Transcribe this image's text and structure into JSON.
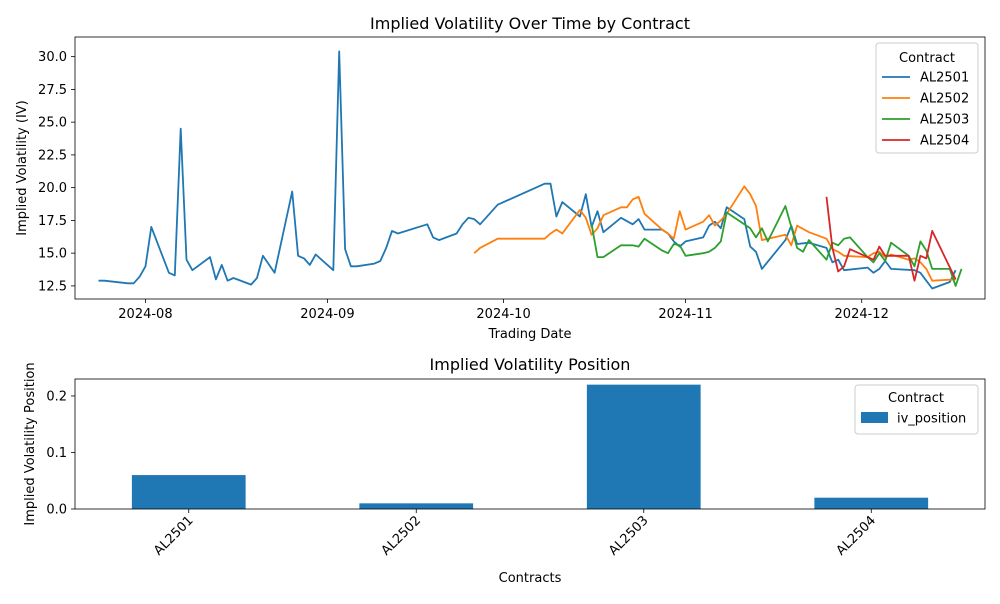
{
  "colors": {
    "AL2501": "#1f77b4",
    "AL2502": "#ff7f0e",
    "AL2503": "#2ca02c",
    "AL2504": "#d62728",
    "bar": "#1f77b4"
  },
  "chart_data": [
    {
      "type": "line",
      "title": "Implied Volatility Over Time by Contract",
      "xlabel": "Trading Date",
      "ylabel": "Implied Volatility (IV)",
      "xlim": [
        "2024-07-20",
        "2024-12-22"
      ],
      "ylim": [
        11.5,
        31.5
      ],
      "x_ticks": [
        "2024-08-01",
        "2024-09-01",
        "2024-10-01",
        "2024-11-01",
        "2024-12-01"
      ],
      "x_tick_labels": [
        "2024-08",
        "2024-09",
        "2024-10",
        "2024-11",
        "2024-12"
      ],
      "y_ticks": [
        12.5,
        15.0,
        17.5,
        20.0,
        22.5,
        25.0,
        27.5,
        30.0
      ],
      "y_tick_labels": [
        "12.5",
        "15.0",
        "17.5",
        "20.0",
        "22.5",
        "25.0",
        "27.5",
        "30.0"
      ],
      "grid": false,
      "legend": {
        "title": "Contract",
        "position": "top-right"
      },
      "series": [
        {
          "name": "AL2501",
          "points": [
            [
              "2024-07-24",
              12.9
            ],
            [
              "2024-07-25",
              12.9
            ],
            [
              "2024-07-29",
              12.7
            ],
            [
              "2024-07-30",
              12.7
            ],
            [
              "2024-07-31",
              13.2
            ],
            [
              "2024-08-01",
              14.0
            ],
            [
              "2024-08-02",
              17.0
            ],
            [
              "2024-08-05",
              13.5
            ],
            [
              "2024-08-06",
              13.3
            ],
            [
              "2024-08-07",
              24.5
            ],
            [
              "2024-08-08",
              14.5
            ],
            [
              "2024-08-09",
              13.7
            ],
            [
              "2024-08-12",
              14.7
            ],
            [
              "2024-08-13",
              13.0
            ],
            [
              "2024-08-14",
              14.1
            ],
            [
              "2024-08-15",
              12.9
            ],
            [
              "2024-08-16",
              13.1
            ],
            [
              "2024-08-19",
              12.6
            ],
            [
              "2024-08-20",
              13.1
            ],
            [
              "2024-08-21",
              14.8
            ],
            [
              "2024-08-23",
              13.5
            ],
            [
              "2024-08-26",
              19.7
            ],
            [
              "2024-08-27",
              14.8
            ],
            [
              "2024-08-28",
              14.6
            ],
            [
              "2024-08-29",
              14.1
            ],
            [
              "2024-08-30",
              14.9
            ],
            [
              "2024-09-02",
              13.7
            ],
            [
              "2024-09-03",
              30.4
            ],
            [
              "2024-09-04",
              15.3
            ],
            [
              "2024-09-05",
              14.0
            ],
            [
              "2024-09-06",
              14.0
            ],
            [
              "2024-09-09",
              14.2
            ],
            [
              "2024-09-10",
              14.4
            ],
            [
              "2024-09-11",
              15.4
            ],
            [
              "2024-09-12",
              16.7
            ],
            [
              "2024-09-13",
              16.5
            ],
            [
              "2024-09-18",
              17.2
            ],
            [
              "2024-09-19",
              16.2
            ],
            [
              "2024-09-20",
              16.0
            ],
            [
              "2024-09-23",
              16.5
            ],
            [
              "2024-09-24",
              17.2
            ],
            [
              "2024-09-25",
              17.7
            ],
            [
              "2024-09-26",
              17.6
            ],
            [
              "2024-09-27",
              17.2
            ],
            [
              "2024-09-30",
              18.7
            ],
            [
              "2024-10-08",
              20.3
            ],
            [
              "2024-10-09",
              20.3
            ],
            [
              "2024-10-10",
              17.8
            ],
            [
              "2024-10-11",
              18.9
            ],
            [
              "2024-10-14",
              17.8
            ],
            [
              "2024-10-15",
              19.5
            ],
            [
              "2024-10-16",
              17.0
            ],
            [
              "2024-10-17",
              18.2
            ],
            [
              "2024-10-18",
              16.6
            ],
            [
              "2024-10-21",
              17.7
            ],
            [
              "2024-10-23",
              17.2
            ],
            [
              "2024-10-24",
              17.6
            ],
            [
              "2024-10-25",
              16.8
            ],
            [
              "2024-10-28",
              16.8
            ],
            [
              "2024-10-29",
              16.5
            ],
            [
              "2024-10-30",
              15.9
            ],
            [
              "2024-10-31",
              15.5
            ],
            [
              "2024-11-01",
              15.9
            ],
            [
              "2024-11-04",
              16.2
            ],
            [
              "2024-11-05",
              17.1
            ],
            [
              "2024-11-06",
              17.4
            ],
            [
              "2024-11-07",
              16.9
            ],
            [
              "2024-11-08",
              18.5
            ],
            [
              "2024-11-11",
              17.6
            ],
            [
              "2024-11-12",
              15.5
            ],
            [
              "2024-11-13",
              15.1
            ],
            [
              "2024-11-14",
              13.8
            ],
            [
              "2024-11-18",
              16.0
            ],
            [
              "2024-11-19",
              17.1
            ],
            [
              "2024-11-20",
              15.7
            ],
            [
              "2024-11-22",
              15.8
            ],
            [
              "2024-11-25",
              15.4
            ],
            [
              "2024-11-26",
              14.3
            ],
            [
              "2024-11-27",
              14.5
            ],
            [
              "2024-11-28",
              13.7
            ],
            [
              "2024-12-02",
              13.9
            ],
            [
              "2024-12-03",
              13.5
            ],
            [
              "2024-12-04",
              13.8
            ],
            [
              "2024-12-05",
              14.4
            ],
            [
              "2024-12-06",
              13.8
            ],
            [
              "2024-12-10",
              13.7
            ],
            [
              "2024-12-11",
              13.5
            ],
            [
              "2024-12-12",
              12.9
            ],
            [
              "2024-12-13",
              12.3
            ],
            [
              "2024-12-16",
              12.8
            ],
            [
              "2024-12-17",
              13.7
            ]
          ]
        },
        {
          "name": "AL2502",
          "points": [
            [
              "2024-09-26",
              15.0
            ],
            [
              "2024-09-27",
              15.4
            ],
            [
              "2024-09-30",
              16.1
            ],
            [
              "2024-10-08",
              16.1
            ],
            [
              "2024-10-09",
              16.5
            ],
            [
              "2024-10-10",
              16.8
            ],
            [
              "2024-10-11",
              16.5
            ],
            [
              "2024-10-14",
              18.3
            ],
            [
              "2024-10-15",
              17.7
            ],
            [
              "2024-10-16",
              16.4
            ],
            [
              "2024-10-17",
              16.9
            ],
            [
              "2024-10-18",
              17.9
            ],
            [
              "2024-10-21",
              18.5
            ],
            [
              "2024-10-22",
              18.5
            ],
            [
              "2024-10-23",
              19.1
            ],
            [
              "2024-10-24",
              19.3
            ],
            [
              "2024-10-25",
              18.0
            ],
            [
              "2024-10-28",
              16.8
            ],
            [
              "2024-10-29",
              16.5
            ],
            [
              "2024-10-30",
              16.1
            ],
            [
              "2024-10-31",
              18.2
            ],
            [
              "2024-11-01",
              16.8
            ],
            [
              "2024-11-04",
              17.4
            ],
            [
              "2024-11-05",
              17.9
            ],
            [
              "2024-11-06",
              17.1
            ],
            [
              "2024-11-07",
              17.5
            ],
            [
              "2024-11-08",
              18.0
            ],
            [
              "2024-11-11",
              20.1
            ],
            [
              "2024-11-12",
              19.5
            ],
            [
              "2024-11-13",
              18.6
            ],
            [
              "2024-11-14",
              16.0
            ],
            [
              "2024-11-18",
              16.4
            ],
            [
              "2024-11-19",
              15.6
            ],
            [
              "2024-11-20",
              17.1
            ],
            [
              "2024-11-22",
              16.6
            ],
            [
              "2024-11-25",
              16.1
            ],
            [
              "2024-11-26",
              15.3
            ],
            [
              "2024-11-27",
              15.1
            ],
            [
              "2024-11-28",
              14.8
            ],
            [
              "2024-12-02",
              14.7
            ],
            [
              "2024-12-03",
              15.0
            ],
            [
              "2024-12-04",
              15.1
            ],
            [
              "2024-12-05",
              14.7
            ],
            [
              "2024-12-06",
              14.9
            ],
            [
              "2024-12-09",
              14.5
            ],
            [
              "2024-12-10",
              14.6
            ],
            [
              "2024-12-11",
              14.3
            ],
            [
              "2024-12-12",
              13.8
            ],
            [
              "2024-12-13",
              12.9
            ],
            [
              "2024-12-17",
              13.0
            ]
          ]
        },
        {
          "name": "AL2503",
          "points": [
            [
              "2024-10-16",
              17.2
            ],
            [
              "2024-10-17",
              14.7
            ],
            [
              "2024-10-18",
              14.7
            ],
            [
              "2024-10-21",
              15.6
            ],
            [
              "2024-10-22",
              15.6
            ],
            [
              "2024-10-23",
              15.6
            ],
            [
              "2024-10-24",
              15.5
            ],
            [
              "2024-10-25",
              16.1
            ],
            [
              "2024-10-28",
              15.2
            ],
            [
              "2024-10-29",
              15.0
            ],
            [
              "2024-10-30",
              15.7
            ],
            [
              "2024-10-31",
              15.6
            ],
            [
              "2024-11-01",
              14.8
            ],
            [
              "2024-11-04",
              15.0
            ],
            [
              "2024-11-05",
              15.1
            ],
            [
              "2024-11-06",
              15.4
            ],
            [
              "2024-11-07",
              15.9
            ],
            [
              "2024-11-08",
              18.1
            ],
            [
              "2024-11-11",
              17.2
            ],
            [
              "2024-11-12",
              16.9
            ],
            [
              "2024-11-13",
              16.2
            ],
            [
              "2024-11-14",
              16.9
            ],
            [
              "2024-11-15",
              15.9
            ],
            [
              "2024-11-18",
              18.6
            ],
            [
              "2024-11-19",
              17.0
            ],
            [
              "2024-11-20",
              15.4
            ],
            [
              "2024-11-21",
              15.1
            ],
            [
              "2024-11-22",
              16.0
            ],
            [
              "2024-11-25",
              14.5
            ],
            [
              "2024-11-26",
              15.8
            ],
            [
              "2024-11-27",
              15.6
            ],
            [
              "2024-11-28",
              16.1
            ],
            [
              "2024-11-29",
              16.2
            ],
            [
              "2024-12-02",
              14.7
            ],
            [
              "2024-12-03",
              14.3
            ],
            [
              "2024-12-04",
              15.0
            ],
            [
              "2024-12-05",
              14.4
            ],
            [
              "2024-12-06",
              15.8
            ],
            [
              "2024-12-09",
              14.8
            ],
            [
              "2024-12-10",
              14.0
            ],
            [
              "2024-12-11",
              15.9
            ],
            [
              "2024-12-12",
              15.2
            ],
            [
              "2024-12-13",
              13.8
            ],
            [
              "2024-12-16",
              13.8
            ],
            [
              "2024-12-17",
              12.5
            ],
            [
              "2024-12-18",
              13.8
            ]
          ]
        },
        {
          "name": "AL2504",
          "points": [
            [
              "2024-11-25",
              19.3
            ],
            [
              "2024-11-26",
              15.4
            ],
            [
              "2024-11-27",
              13.6
            ],
            [
              "2024-11-28",
              14.0
            ],
            [
              "2024-11-29",
              15.3
            ],
            [
              "2024-12-02",
              14.7
            ],
            [
              "2024-12-03",
              14.5
            ],
            [
              "2024-12-04",
              15.5
            ],
            [
              "2024-12-05",
              14.8
            ],
            [
              "2024-12-09",
              14.8
            ],
            [
              "2024-12-10",
              12.9
            ],
            [
              "2024-12-11",
              14.8
            ],
            [
              "2024-12-12",
              14.6
            ],
            [
              "2024-12-13",
              16.7
            ],
            [
              "2024-12-17",
              13.0
            ]
          ]
        }
      ]
    },
    {
      "type": "bar",
      "title": "Implied Volatility Position",
      "xlabel": "Contracts",
      "ylabel": "Implied Volatility Position",
      "categories": [
        "AL2501",
        "AL2502",
        "AL2503",
        "AL2504"
      ],
      "series": [
        {
          "name": "iv_position",
          "values": [
            0.06,
            0.01,
            0.22,
            0.02
          ]
        }
      ],
      "ylim": [
        0,
        0.23
      ],
      "y_ticks": [
        0.0,
        0.1,
        0.2
      ],
      "y_tick_labels": [
        "0.0",
        "0.1",
        "0.2"
      ],
      "grid": false,
      "legend": {
        "title": "Contract",
        "position": "top-right"
      }
    }
  ]
}
